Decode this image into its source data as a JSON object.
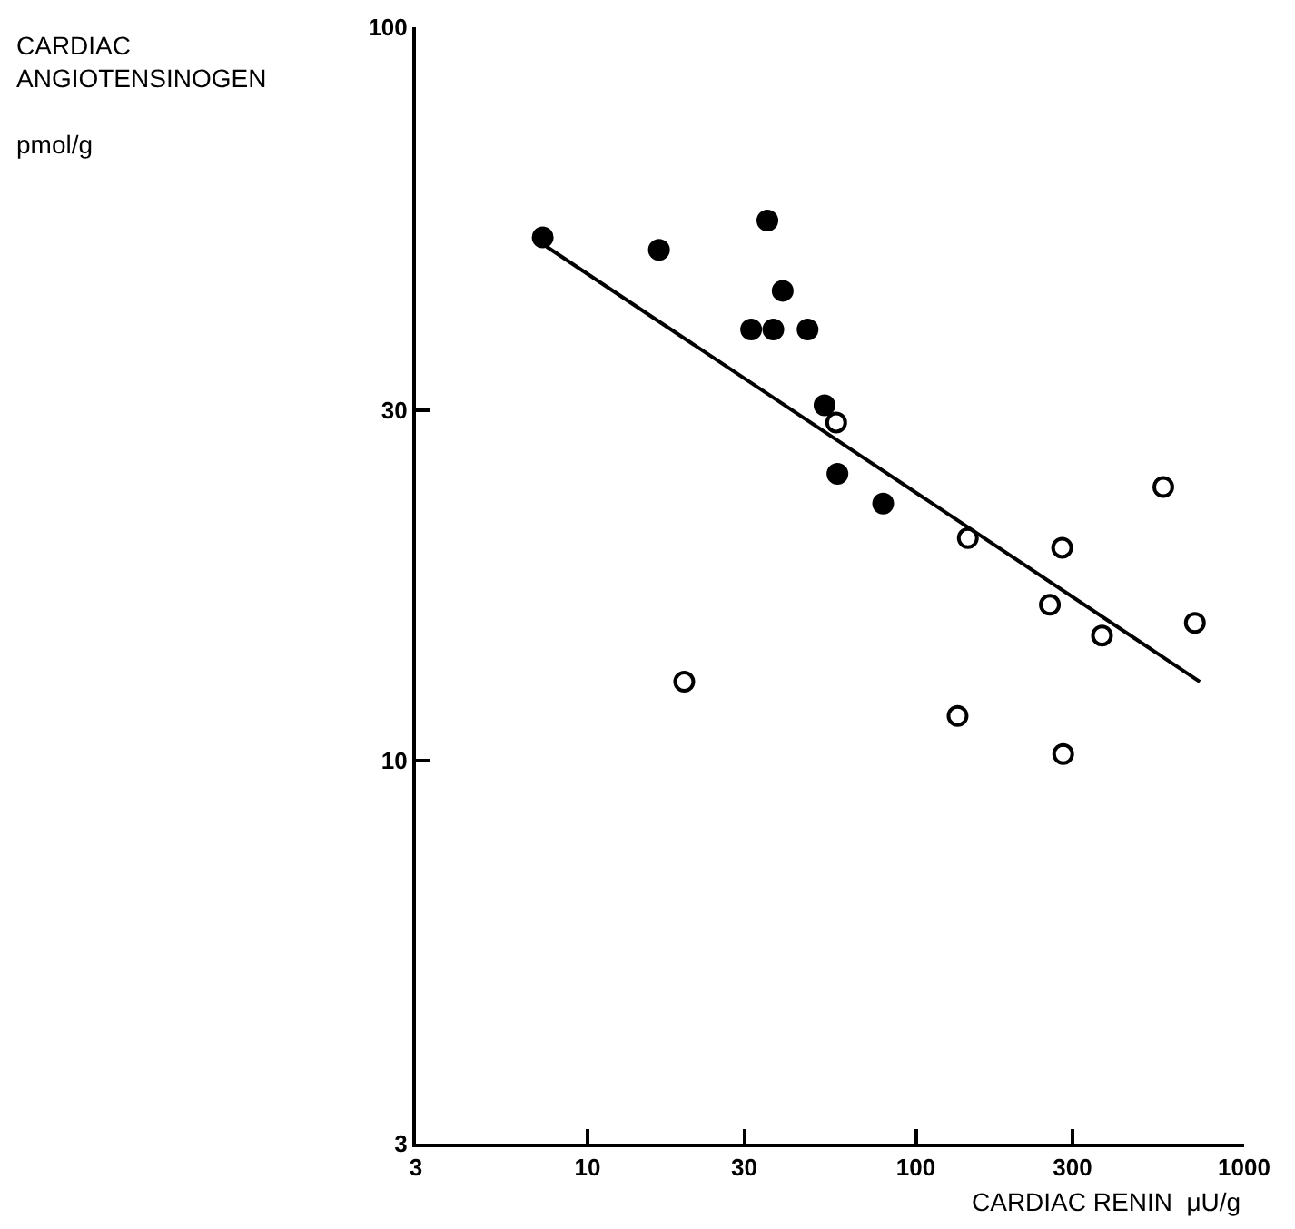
{
  "chart_data": {
    "type": "scatter",
    "xlabel": "CARDIAC RENIN  μU/g",
    "ylabel": "CARDIAC\nANGIOTENSINOGEN\n\npmol/g",
    "log": "xy",
    "grid": false,
    "legend": false,
    "marker": "circle",
    "xlim": [
      3,
      1000
    ],
    "xticks": [
      3,
      10,
      30,
      100,
      300,
      1000
    ],
    "ylim": [
      3,
      100
    ],
    "yticks": [
      3,
      10,
      30,
      100
    ],
    "series": [
      {
        "color": "#000000",
        "x": [
          7.3,
          16.5,
          35.3,
          39.3,
          31.5,
          36.8,
          46.8,
          52.7,
          57.7,
          79.5
        ],
        "values": [
          51.7,
          49.7,
          54.5,
          43.7,
          38.7,
          38.7,
          38.7,
          30.5,
          24.6,
          22.4
        ]
      },
      {
        "color": "#ffffff",
        "x": [
          57.2,
          144,
          279,
          567,
          256,
          369,
          708,
          19.7,
          134,
          281
        ],
        "values": [
          28.9,
          20.1,
          19.5,
          23.6,
          16.3,
          14.8,
          15.4,
          12.8,
          11.5,
          10.2
        ]
      },
      {
        "type": "line",
        "color": "#000000",
        "marker": "none",
        "line_style": "solid",
        "x": [
          7.5,
          733
        ],
        "values": [
          50.2,
          12.8
        ]
      }
    ]
  }
}
